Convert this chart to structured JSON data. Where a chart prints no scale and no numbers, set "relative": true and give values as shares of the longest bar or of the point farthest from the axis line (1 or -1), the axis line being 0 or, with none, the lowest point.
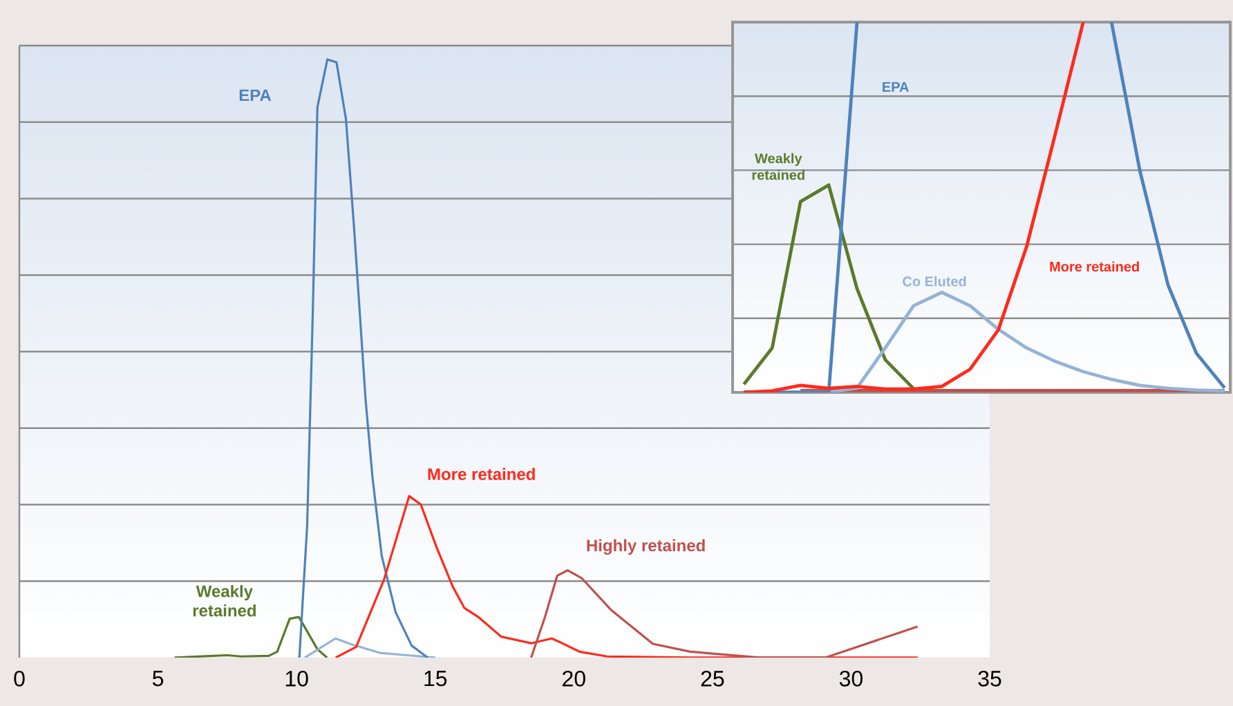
{
  "chart_data": [
    {
      "type": "line",
      "relative": true,
      "grid": "y",
      "tick_labels": "x",
      "xlim": [
        0,
        35
      ],
      "xticks": [
        0,
        5,
        10,
        15,
        20,
        25,
        30,
        35
      ],
      "series": [
        {
          "name": "Weakly retained",
          "color": "#5b7a2b",
          "x": [
            5.6,
            7.0,
            7.5,
            8.0,
            9.0,
            9.3,
            9.75,
            10.08,
            10.33,
            10.75,
            11.1
          ],
          "values": [
            0,
            0.003,
            0.004,
            0.002,
            0.003,
            0.01,
            0.065,
            0.068,
            0.048,
            0.014,
            0
          ]
        },
        {
          "color": "#95b3d7",
          "x": [
            10.3,
            11.4,
            12.0,
            13.0,
            14.5,
            15.0
          ],
          "values": [
            0,
            0.032,
            0.022,
            0.008,
            0.002,
            0
          ]
        },
        {
          "name": "EPA",
          "color": "#4f81bd",
          "x": [
            10.1,
            10.38,
            10.58,
            10.75,
            11.11,
            11.44,
            11.78,
            12.07,
            12.49,
            12.74,
            13.07,
            13.57,
            14.15,
            14.73
          ],
          "values": [
            0,
            0.22,
            0.57,
            0.92,
            1.0,
            0.995,
            0.9,
            0.72,
            0.43,
            0.3,
            0.17,
            0.076,
            0.02,
            0
          ]
        },
        {
          "name": "More retained",
          "color": "#ff2a1a",
          "x": [
            11.41,
            12.15,
            13.15,
            14.06,
            14.48,
            15.06,
            15.64,
            16.05,
            16.55,
            17.38,
            18.46,
            19.2,
            19.54,
            20.2,
            21.2,
            24.2,
            32.4
          ],
          "values": [
            0,
            0.018,
            0.13,
            0.27,
            0.256,
            0.183,
            0.118,
            0.083,
            0.068,
            0.035,
            0.024,
            0.032,
            0.025,
            0.01,
            0.002,
            0,
            0
          ]
        },
        {
          "name": "Highly retained",
          "color": "#c0504d",
          "x": [
            18.46,
            18.96,
            19.4,
            19.78,
            20.28,
            21.36,
            22.85,
            24.2,
            26.7,
            29.07,
            32.4
          ],
          "values": [
            0,
            0.068,
            0.137,
            0.146,
            0.133,
            0.079,
            0.023,
            0.01,
            0,
            0,
            0.052
          ]
        }
      ]
    },
    {
      "type": "line",
      "relative": true,
      "grid": "y",
      "tick_labels": false,
      "categories": [
        null,
        null,
        null,
        null,
        null,
        null,
        null,
        null,
        null,
        null,
        null,
        null,
        null,
        null,
        null,
        null,
        null,
        null
      ],
      "series": [
        {
          "color": "#c0504d",
          "values": [
            null,
            null,
            0.005,
            0.005,
            0.005,
            0.005,
            0.005,
            0.005,
            0.005,
            0.005,
            0.005,
            0.005,
            0.005,
            0.005,
            0.005,
            0.005,
            0.005,
            0.005
          ]
        },
        {
          "name": "Weakly retained",
          "color": "#5b7a2b",
          "values": [
            0.022,
            0.12,
            0.515,
            0.56,
            0.28,
            0.088,
            0.01,
            null,
            null,
            null,
            null,
            null,
            null,
            null,
            null,
            null,
            null,
            null
          ]
        },
        {
          "name": "Co Eluted",
          "color": "#95b3d7",
          "values": [
            0,
            0,
            0,
            0,
            0.012,
            0.12,
            0.234,
            0.27,
            0.234,
            0.17,
            0.12,
            0.084,
            0.056,
            0.035,
            0.019,
            0.011,
            0.006,
            0.004
          ]
        },
        {
          "name": "EPA",
          "color": "#4f81bd",
          "values": [
            0,
            0,
            0,
            0,
            1,
            null,
            null,
            null,
            null,
            null,
            null,
            null,
            null,
            1,
            0.6,
            0.29,
            0.106,
            0.012
          ]
        },
        {
          "name": "More retained",
          "color": "#ff2a1a",
          "values": [
            0,
            0.004,
            0.019,
            0.011,
            0.016,
            0.009,
            0.009,
            0.016,
            0.0625,
            0.169,
            0.394,
            0.694,
            1.0,
            null,
            null,
            null,
            null,
            null
          ]
        }
      ]
    }
  ]
}
